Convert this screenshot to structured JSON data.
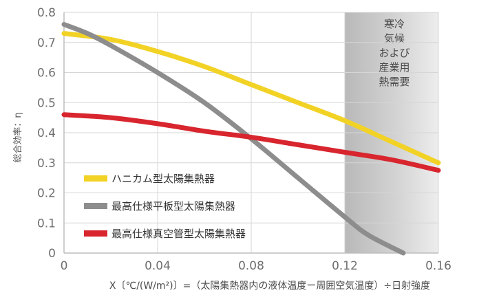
{
  "chart_data": {
    "type": "line",
    "xlabel": "X〔℃/(W/m²)〕=（太陽集熱器内の液体温度ー周囲空気温度）÷日射強度",
    "ylabel": "総合効率：η",
    "xlim": [
      0,
      0.16
    ],
    "ylim": [
      0,
      0.8
    ],
    "x_ticks": [
      0,
      0.04,
      0.08,
      0.12,
      0.16
    ],
    "x_tick_labels": [
      "0",
      "0.04",
      "0.08",
      "0.12",
      "0.16"
    ],
    "y_ticks": [
      0,
      0.1,
      0.2,
      0.3,
      0.4,
      0.5,
      0.6,
      0.7,
      0.8
    ],
    "y_tick_labels": [
      "0",
      "0.1",
      "0.2",
      "0.3",
      "0.4",
      "0.5",
      "0.6",
      "0.7",
      "0.8"
    ],
    "grid": true,
    "legend_position": "bottom-left",
    "shaded_region": {
      "x_from": 0.12,
      "x_to": 0.16,
      "label_lines": [
        "寒冷",
        "気候",
        "および",
        "産業用",
        "熱需要"
      ]
    },
    "series": [
      {
        "name": "ハニカム型太陽集熱器",
        "color": "#f2d225",
        "x": [
          0,
          0.02,
          0.04,
          0.06,
          0.08,
          0.1,
          0.12,
          0.14,
          0.16
        ],
        "y": [
          0.73,
          0.71,
          0.67,
          0.62,
          0.56,
          0.5,
          0.44,
          0.37,
          0.3
        ]
      },
      {
        "name": "最高仕様平板型太陽集熱器",
        "color": "#8d8d8d",
        "x": [
          0,
          0.01,
          0.02,
          0.04,
          0.06,
          0.08,
          0.1,
          0.12,
          0.13,
          0.145
        ],
        "y": [
          0.76,
          0.73,
          0.69,
          0.6,
          0.5,
          0.38,
          0.25,
          0.12,
          0.06,
          0.0
        ]
      },
      {
        "name": "最高仕様真空管型太陽集熱器",
        "color": "#d8252e",
        "x": [
          0,
          0.02,
          0.04,
          0.06,
          0.08,
          0.1,
          0.12,
          0.14,
          0.16
        ],
        "y": [
          0.46,
          0.45,
          0.43,
          0.405,
          0.385,
          0.36,
          0.335,
          0.31,
          0.275
        ]
      }
    ]
  }
}
